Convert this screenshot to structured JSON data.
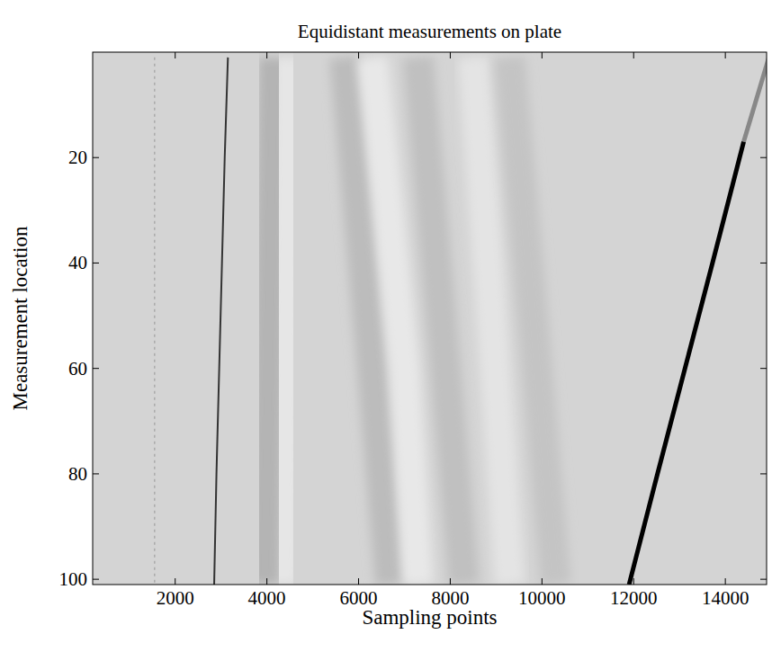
{
  "chart_data": {
    "type": "line",
    "title": "Equidistant measurements on plate",
    "x_label": "Sampling points",
    "y_label": "Measurement location",
    "xlim": [
      200,
      14900
    ],
    "xticks": [
      2000,
      4000,
      6000,
      8000,
      10000,
      12000,
      14000
    ],
    "ylim": [
      0,
      101
    ],
    "yticks": [
      20,
      40,
      60,
      80,
      100
    ],
    "grid": false,
    "series": [
      {
        "color": "#aaaaaa",
        "line_style": "dotted",
        "x": [
          1550,
          1550
        ],
        "values": [
          1,
          101
        ]
      },
      {
        "color": "#b4b4b4",
        "line_style": "band",
        "x": [
          4150,
          4050,
          3950
        ],
        "values": [
          1,
          50,
          101
        ]
      },
      {
        "color": "#e6e6e6",
        "line_style": "band",
        "x": [
          4500,
          4420,
          4350
        ],
        "values": [
          1,
          50,
          101
        ]
      },
      {
        "color": "#bcbcbc",
        "line_style": "band",
        "x": [
          5700,
          6000,
          6300,
          6700
        ],
        "values": [
          1,
          30,
          60,
          101
        ]
      },
      {
        "color": "#e8e8e8",
        "line_style": "band",
        "x": [
          6300,
          6650,
          7000,
          7300
        ],
        "values": [
          1,
          30,
          60,
          101
        ]
      },
      {
        "color": "#c0c0c0",
        "line_style": "band",
        "x": [
          7300,
          7800,
          8300
        ],
        "values": [
          1,
          50,
          101
        ]
      },
      {
        "color": "#e4e4e4",
        "line_style": "band",
        "x": [
          8500,
          8900,
          9300
        ],
        "values": [
          1,
          50,
          101
        ]
      },
      {
        "color": "#c4c4c4",
        "line_style": "band",
        "x": [
          9300,
          9800,
          10300
        ],
        "values": [
          1,
          50,
          101
        ]
      },
      {
        "color": "#333333",
        "line_style": "solid",
        "x": [
          3150,
          3080,
          3020,
          2960,
          2900,
          2850
        ],
        "values": [
          1,
          20,
          40,
          60,
          80,
          101
        ]
      },
      {
        "color": "#888888",
        "line_style": "thick",
        "x": [
          14950,
          14400
        ],
        "values": [
          1,
          17
        ]
      },
      {
        "color": "#000000",
        "line_style": "thick",
        "x": [
          14400,
          13720,
          13120,
          12520,
          11900
        ],
        "values": [
          17,
          40,
          60,
          80,
          101
        ]
      }
    ]
  }
}
